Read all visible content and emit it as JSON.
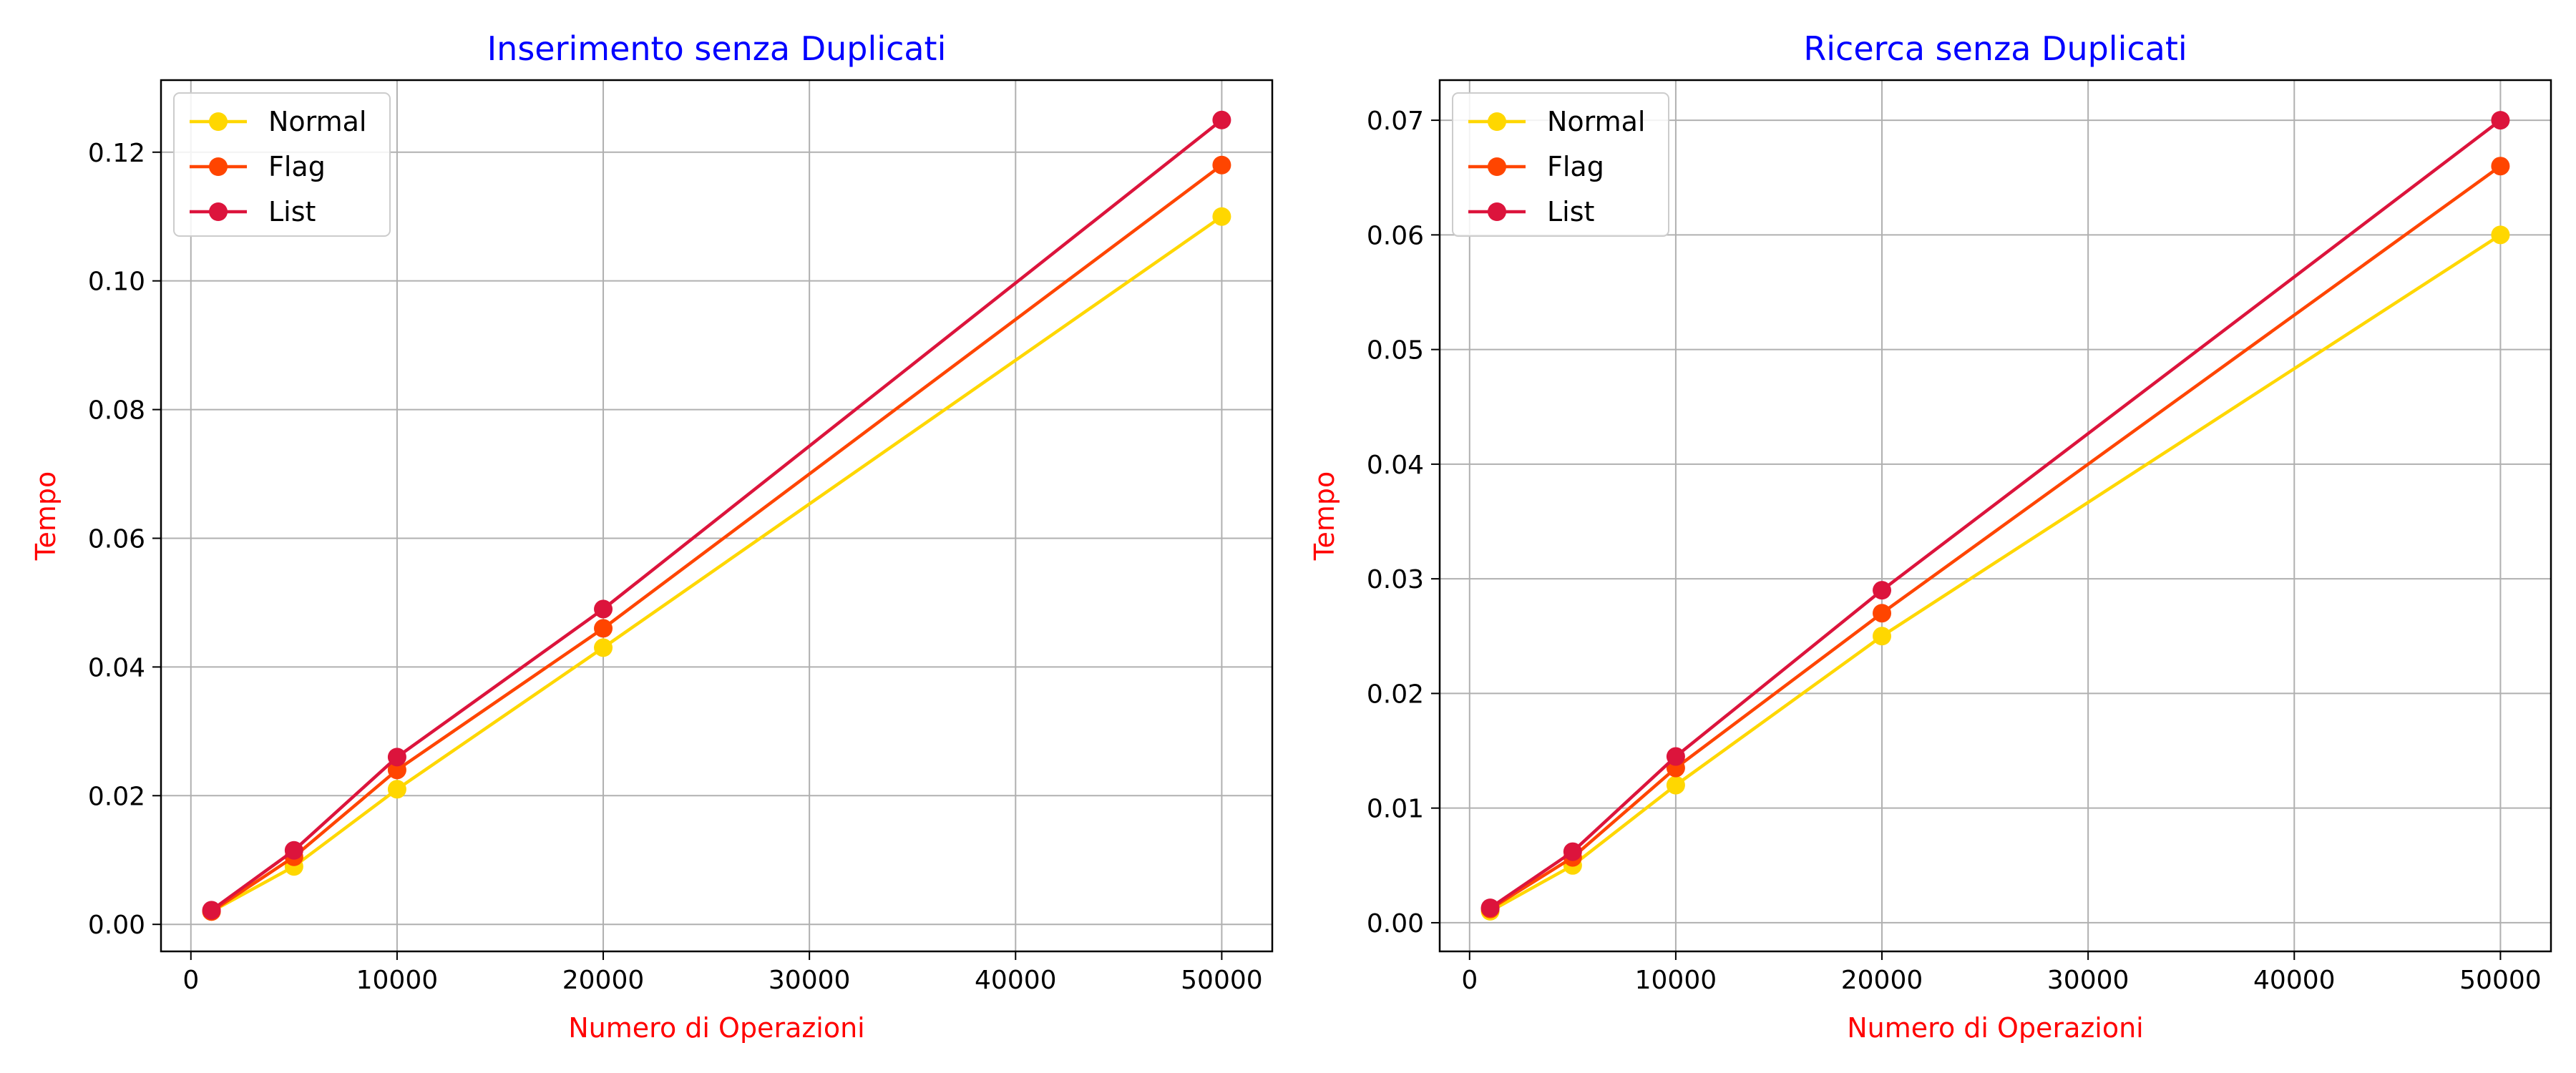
{
  "colors": {
    "title": "#0000ff",
    "axis_label": "#ff0000",
    "Normal": "#ffd700",
    "Flag": "#ff4500",
    "List": "#dc143c",
    "grid": "#b0b0b0"
  },
  "chart_data": [
    {
      "type": "line",
      "title": "Inserimento senza Duplicati",
      "xlabel": "Numero di Operazioni",
      "ylabel": "Tempo",
      "x": [
        1000,
        5000,
        10000,
        20000,
        50000
      ],
      "xlim": [
        -1450,
        52450
      ],
      "ylim": [
        -0.0042,
        0.1312
      ],
      "xticks": [
        0,
        10000,
        20000,
        30000,
        40000,
        50000
      ],
      "xtick_labels": [
        "0",
        "10000",
        "20000",
        "30000",
        "40000",
        "50000"
      ],
      "yticks": [
        0,
        0.02,
        0.04,
        0.06,
        0.08,
        0.1,
        0.12
      ],
      "ytick_labels": [
        "0.00",
        "0.02",
        "0.04",
        "0.06",
        "0.08",
        "0.10",
        "0.12"
      ],
      "grid": true,
      "legend_position": "top-left",
      "series": [
        {
          "name": "Normal",
          "values": [
            0.002,
            0.009,
            0.021,
            0.043,
            0.11
          ]
        },
        {
          "name": "Flag",
          "values": [
            0.002,
            0.0105,
            0.024,
            0.046,
            0.118
          ]
        },
        {
          "name": "List",
          "values": [
            0.0022,
            0.0115,
            0.026,
            0.049,
            0.125
          ]
        }
      ]
    },
    {
      "type": "line",
      "title": "Ricerca senza Duplicati",
      "xlabel": "Numero di Operazioni",
      "ylabel": "Tempo",
      "x": [
        1000,
        5000,
        10000,
        20000,
        50000
      ],
      "xlim": [
        -1450,
        52450
      ],
      "ylim": [
        -0.0025,
        0.0735
      ],
      "xticks": [
        0,
        10000,
        20000,
        30000,
        40000,
        50000
      ],
      "xtick_labels": [
        "0",
        "10000",
        "20000",
        "30000",
        "40000",
        "50000"
      ],
      "yticks": [
        0,
        0.01,
        0.02,
        0.03,
        0.04,
        0.05,
        0.06,
        0.07
      ],
      "ytick_labels": [
        "0.00",
        "0.01",
        "0.02",
        "0.03",
        "0.04",
        "0.05",
        "0.06",
        "0.07"
      ],
      "grid": true,
      "legend_position": "top-left",
      "series": [
        {
          "name": "Normal",
          "values": [
            0.001,
            0.005,
            0.012,
            0.025,
            0.06
          ]
        },
        {
          "name": "Flag",
          "values": [
            0.0012,
            0.0057,
            0.0135,
            0.027,
            0.066
          ]
        },
        {
          "name": "List",
          "values": [
            0.0013,
            0.0062,
            0.0145,
            0.029,
            0.07
          ]
        }
      ]
    }
  ]
}
